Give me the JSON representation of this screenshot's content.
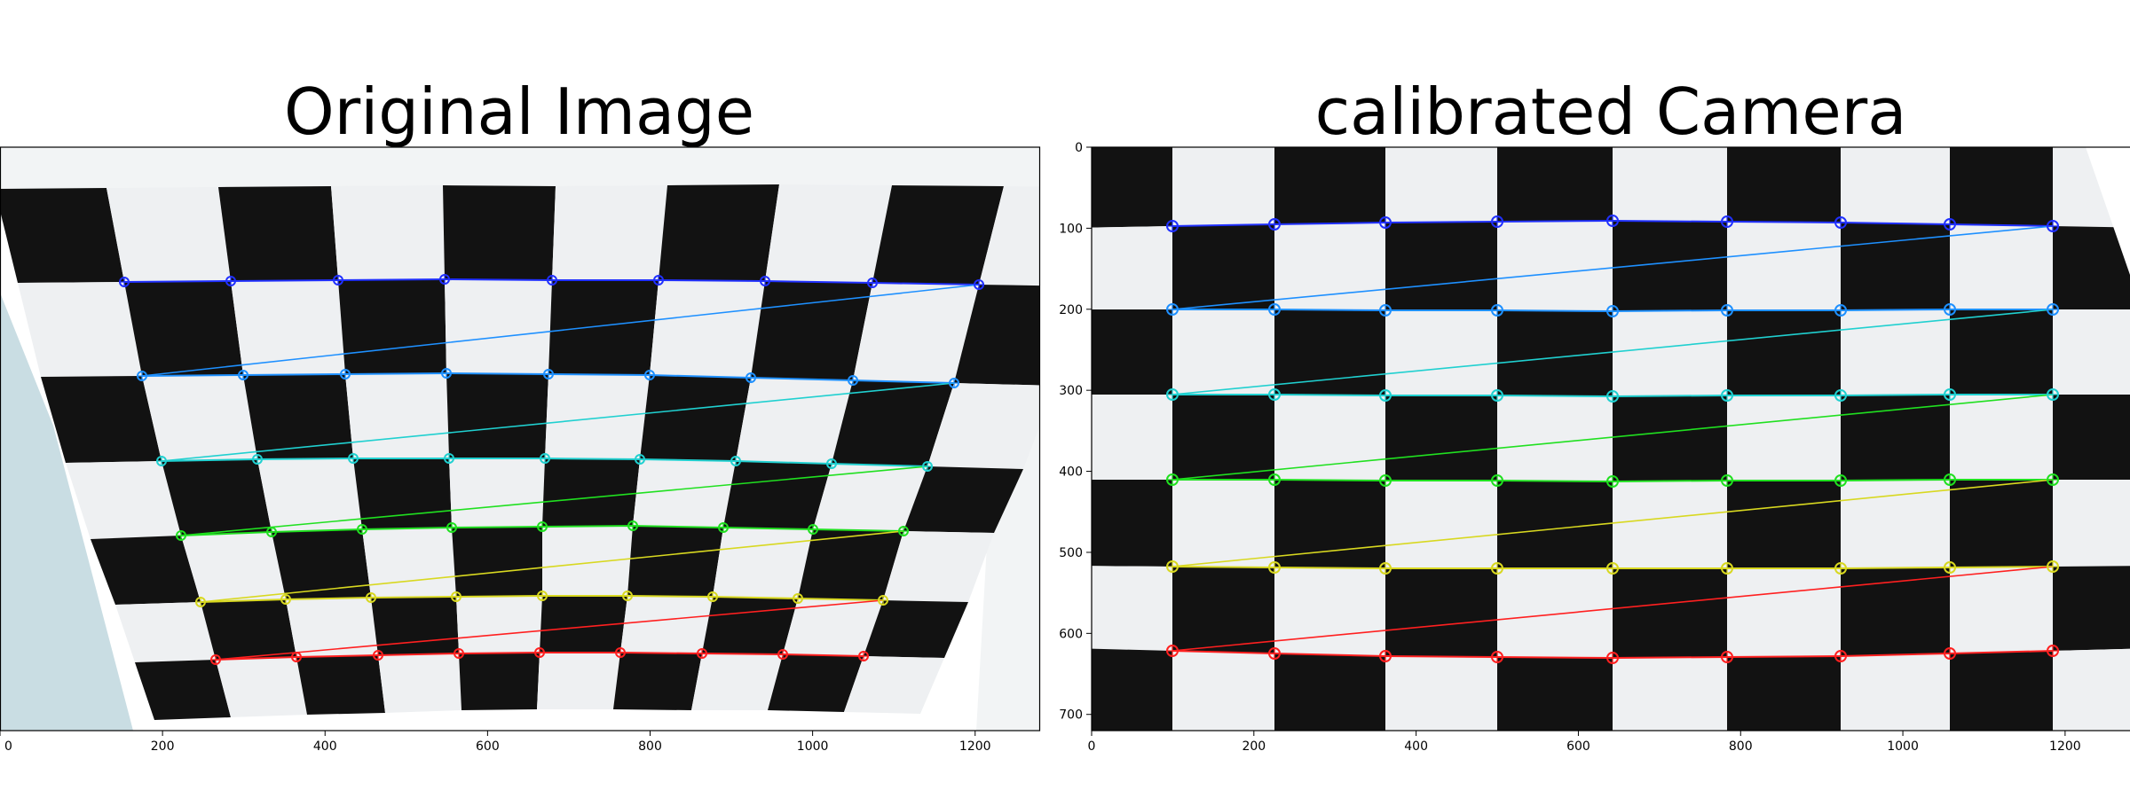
{
  "titles": {
    "left": "Original Image",
    "right": "calibrated Camera"
  },
  "axes": {
    "left": {
      "xticks": [
        "0",
        "200",
        "400",
        "600",
        "800",
        "1000",
        "1200"
      ]
    },
    "right": {
      "xticks": [
        "0",
        "200",
        "400",
        "600",
        "800",
        "1000",
        "1200"
      ],
      "yticks": [
        "0",
        "100",
        "200",
        "300",
        "400",
        "500",
        "600",
        "700"
      ]
    }
  },
  "colors": {
    "board_black": "#121212",
    "board_white": "#eef0f2",
    "row_colors": [
      "#2030ff",
      "#1e90ff",
      "#20d0d0",
      "#20e020",
      "#d8d820",
      "#ff2020"
    ],
    "connector_colors": [
      "#1e90ff",
      "#20d0d0",
      "#20e020",
      "#d8d820",
      "#ff2020"
    ]
  },
  "chessboard": {
    "pattern_cols": 9,
    "pattern_rows": 6
  }
}
